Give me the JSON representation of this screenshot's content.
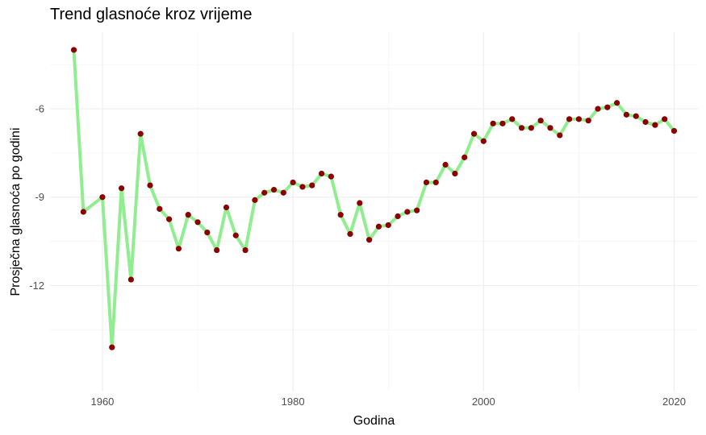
{
  "chart_data": {
    "type": "line",
    "title": "Trend glasnoće kroz vrijeme",
    "xlabel": "Godina",
    "ylabel": "Prosječna glasnoća po godini",
    "xlim": [
      1954.5,
      2022.5
    ],
    "ylim": [
      -15.6,
      -3.4
    ],
    "x_ticks": [
      1960,
      1980,
      2000,
      2020
    ],
    "y_ticks": [
      -6,
      -9,
      -12
    ],
    "grid": true,
    "line_color": "#90ee90",
    "point_color": "#8b0000",
    "series": [
      {
        "x": [
          1957,
          1958,
          1960,
          1961,
          1962,
          1963,
          1964,
          1965,
          1966,
          1967,
          1968,
          1969,
          1970,
          1971,
          1972,
          1973,
          1974,
          1975,
          1976,
          1977,
          1978,
          1979,
          1980,
          1981,
          1982,
          1983,
          1984,
          1985,
          1986,
          1987,
          1988,
          1989,
          1990,
          1991,
          1992,
          1993,
          1994,
          1995,
          1996,
          1997,
          1998,
          1999,
          2000,
          2001,
          2002,
          2003,
          2004,
          2005,
          2006,
          2007,
          2008,
          2009,
          2010,
          2011,
          2012,
          2013,
          2014,
          2015,
          2016,
          2017,
          2018,
          2019,
          2020
        ],
        "y": [
          -4.0,
          -9.5,
          -9.0,
          -14.1,
          -8.7,
          -11.8,
          -6.85,
          -8.6,
          -9.4,
          -9.75,
          -10.75,
          -9.6,
          -9.85,
          -10.2,
          -10.8,
          -9.35,
          -10.3,
          -10.8,
          -9.1,
          -8.85,
          -8.75,
          -8.85,
          -8.5,
          -8.65,
          -8.6,
          -8.2,
          -8.3,
          -9.6,
          -10.25,
          -9.2,
          -10.45,
          -10.0,
          -9.95,
          -9.65,
          -9.5,
          -9.45,
          -8.5,
          -8.5,
          -7.9,
          -8.2,
          -7.65,
          -6.85,
          -7.1,
          -6.5,
          -6.5,
          -6.35,
          -6.65,
          -6.65,
          -6.4,
          -6.65,
          -6.9,
          -6.35,
          -6.35,
          -6.4,
          -6.0,
          -5.95,
          -5.8,
          -6.2,
          -6.25,
          -6.45,
          -6.55,
          -6.35,
          -6.75
        ]
      }
    ]
  }
}
